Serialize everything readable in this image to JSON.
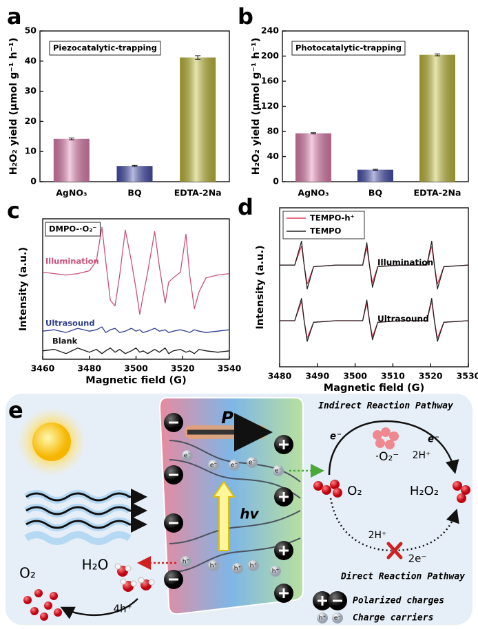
{
  "panel_labels": [
    "a",
    "b",
    "c",
    "d",
    "e"
  ],
  "chart_data": [
    {
      "type": "bar",
      "label": "Piezocatalytic-trapping",
      "y_label": "H₂O₂ yield (μmol g⁻¹ h⁻¹)",
      "categories": [
        "AgNO₃",
        "BQ",
        "EDTA-2Na"
      ],
      "values": [
        14.2,
        5.2,
        41.2
      ],
      "errors": [
        0.3,
        0.2,
        0.6
      ],
      "colors": [
        "#e884b4",
        "#4a52b4",
        "#c6c03a"
      ],
      "ylim": [
        0,
        50
      ],
      "yticks": [
        0,
        10,
        20,
        30,
        40,
        50
      ]
    },
    {
      "type": "bar",
      "label": "Photocatalytic-trapping",
      "y_label": "H₂O₂ yield (μmol g⁻¹ h⁻¹)",
      "categories": [
        "AgNO₃",
        "BQ",
        "EDTA-2Na"
      ],
      "values": [
        77,
        19,
        202
      ],
      "errors": [
        1,
        0.8,
        1.5
      ],
      "colors": [
        "#e884b4",
        "#4a52b4",
        "#c6c03a"
      ],
      "ylim": [
        0,
        240
      ],
      "yticks": [
        0,
        40,
        80,
        120,
        160,
        200,
        240
      ]
    },
    {
      "type": "line",
      "label": "DMPO-·O₂⁻",
      "x_label": "Magnetic field (G)",
      "y_label": "Intensity (a.u.)",
      "x": [
        3460,
        3465,
        3470,
        3475,
        3480,
        3483,
        3485.4,
        3487,
        3489,
        3491,
        3493,
        3495.4,
        3498,
        3500,
        3501.6,
        3503,
        3505,
        3508,
        3510,
        3512.5,
        3514,
        3516,
        3519,
        3521.4,
        3523,
        3525,
        3527,
        3530,
        3535,
        3540
      ],
      "series": [
        {
          "name": "Illumination",
          "color": "#c8507a",
          "values": [
            62,
            61,
            60,
            61,
            63,
            70,
            94,
            70,
            42,
            38,
            60,
            92,
            70,
            50,
            32,
            45,
            62,
            91,
            66,
            40,
            55,
            58,
            62,
            89,
            60,
            36,
            48,
            58,
            60,
            61
          ]
        },
        {
          "name": "Ultrasound",
          "color": "#2c3a8c",
          "values": [
            20,
            21,
            19,
            22,
            20,
            21,
            23,
            19,
            21,
            22,
            19,
            20,
            22,
            20,
            21,
            19,
            20,
            22,
            20,
            21,
            19,
            20,
            21,
            20,
            19,
            21,
            20,
            19,
            20,
            21
          ]
        },
        {
          "name": "Blank",
          "color": "#111111",
          "values": [
            6,
            7,
            4,
            8,
            5,
            7,
            4,
            6,
            8,
            5,
            7,
            4,
            6,
            8,
            5,
            6,
            4,
            7,
            5,
            8,
            4,
            6,
            7,
            5,
            6,
            4,
            7,
            6,
            5,
            6
          ]
        }
      ],
      "xlim": [
        3460,
        3540
      ],
      "xticks": [
        3460,
        3480,
        3500,
        3520,
        3540
      ],
      "ylim": [
        0,
        100
      ]
    },
    {
      "type": "line",
      "x_label": "Magnetic field (G)",
      "y_label": "Intensity (a.u.)",
      "x": [
        3480,
        3484,
        3485.8,
        3486.5,
        3487.3,
        3489,
        3495,
        3502,
        3503.1,
        3503.8,
        3504.6,
        3506,
        3512,
        3519,
        3520.3,
        3521,
        3521.8,
        3523.5,
        3530
      ],
      "series": [
        {
          "name": "TEMPO-h⁺",
          "color": "#e0405a"
        },
        {
          "name": "TEMPO",
          "color": "#222222"
        }
      ],
      "groups": [
        {
          "label": "Illumination",
          "values": [
            [
              64,
              64,
              76,
              64,
              52,
              63,
              64,
              64,
              75,
              64,
              53,
              63,
              64,
              64,
              76,
              64,
              52,
              63,
              64
            ],
            [
              64,
              64,
              79,
              64,
              49,
              63,
              64,
              64,
              78,
              64,
              50,
              63,
              64,
              64,
              79,
              64,
              49,
              63,
              64
            ]
          ]
        },
        {
          "label": "Ultrasound",
          "values": [
            [
              29,
              29,
              41,
              29,
              18,
              28,
              29,
              29,
              40,
              29,
              19,
              28,
              29,
              29,
              41,
              29,
              18,
              28,
              29
            ],
            [
              29,
              29,
              43,
              29,
              16,
              28,
              29,
              29,
              42,
              29,
              17,
              28,
              29,
              29,
              43,
              29,
              16,
              28,
              29
            ]
          ]
        }
      ],
      "xlim": [
        3480,
        3530
      ],
      "xticks": [
        3480,
        3490,
        3500,
        3510,
        3520,
        3530
      ],
      "ylim": [
        0,
        100
      ]
    }
  ],
  "diagram": {
    "indirect_pathway": "Indirect Reaction Pathway",
    "direct_pathway": "Direct Reaction Pathway",
    "polarization": "P",
    "photon": "hv",
    "electron": "e⁻",
    "hole": "h⁺",
    "superoxide": "·O₂⁻",
    "protons": "2H⁺",
    "oxygen": "O₂",
    "product": "H₂O₂",
    "two_electrons": "2e⁻",
    "water": "H₂O",
    "four_holes": "4h⁺",
    "legend": [
      "Polarized charges",
      "Charge carriers"
    ]
  }
}
